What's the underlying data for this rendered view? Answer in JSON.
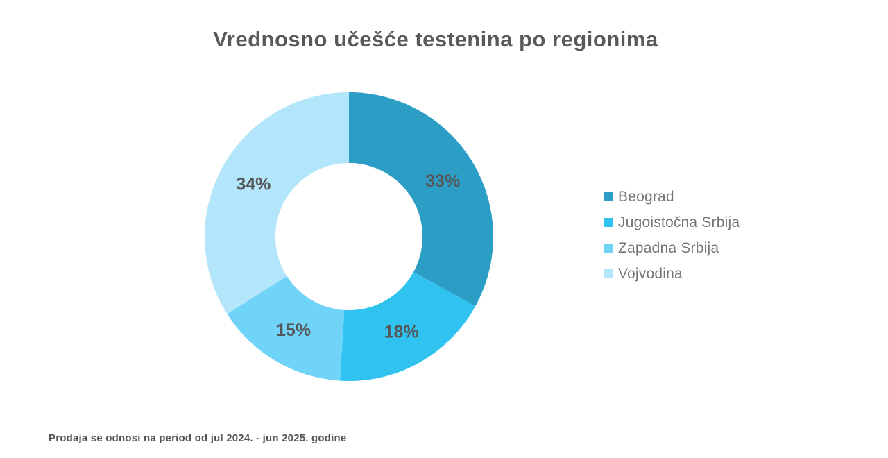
{
  "header": {
    "title": "Vrednosno učešće testenina po regionima"
  },
  "footer": {
    "note": "Prodaja se odnosi na period od jul 2024. - jun 2025. godine"
  },
  "chart_data": {
    "type": "pie",
    "variant": "donut",
    "title": "Vrednosno učešće testenina po regionima",
    "categories": [
      "Beograd",
      "Jugoistočna Srbija",
      "Zapadna Srbija",
      "Vojvodina"
    ],
    "values": [
      33,
      18,
      15,
      34
    ],
    "unit": "%",
    "labels": [
      "33%",
      "18%",
      "15%",
      "34%"
    ],
    "colors": [
      "#2C9EC6",
      "#30C3EF",
      "#70D4F8",
      "#B3E6FA"
    ],
    "start_angle_deg": 0,
    "direction": "clockwise",
    "inner_radius_ratio": 0.51,
    "label_color": "#565656",
    "legend_position": "right",
    "legend_text_color": "#747578",
    "background_color": "#ffffff"
  }
}
